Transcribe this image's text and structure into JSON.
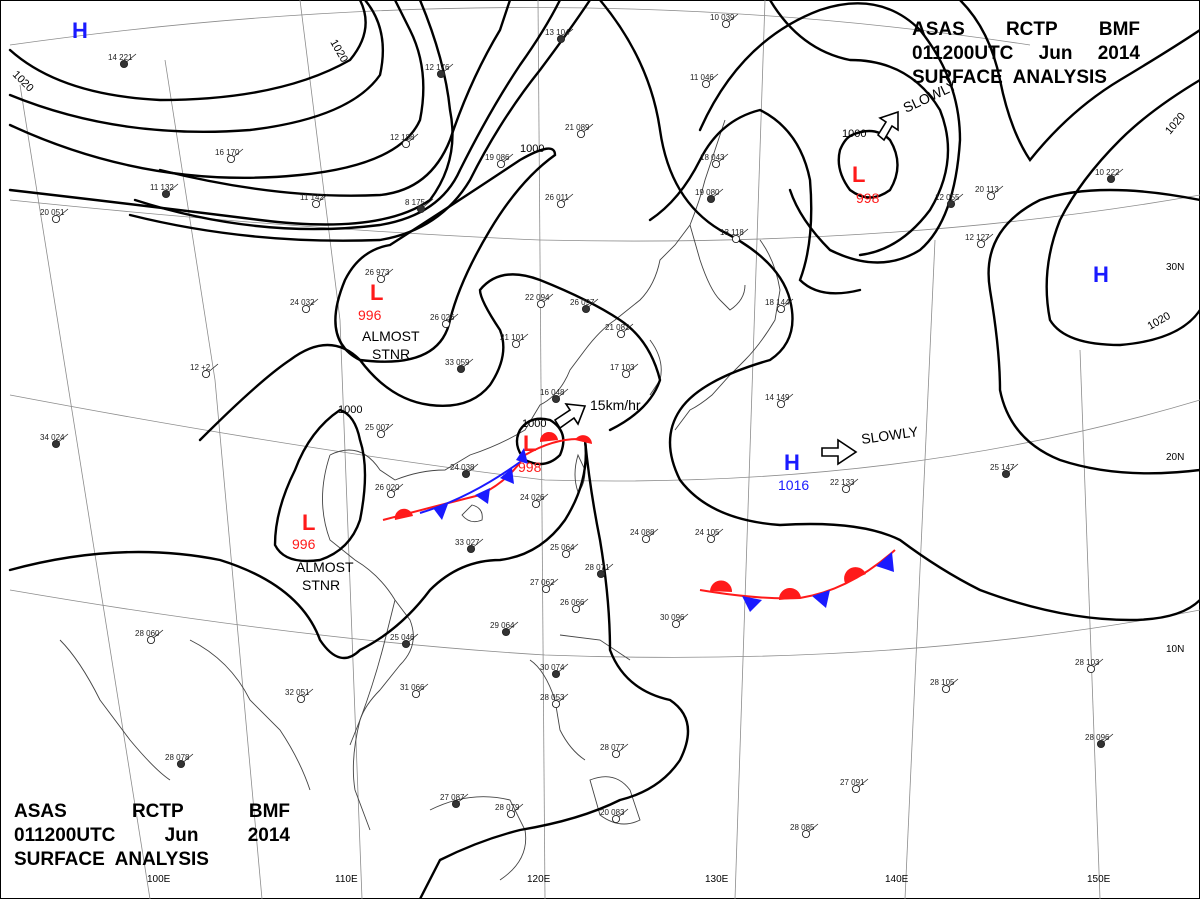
{
  "header": {
    "line1": [
      "ASAS",
      "RCTP",
      "BMF"
    ],
    "line2": [
      "011200UTC",
      "Jun",
      "2014"
    ],
    "line3": "SURFACE  ANALYSIS"
  },
  "colors": {
    "high": "#1a1aff",
    "low": "#ff1a1a",
    "isobar": "#000000",
    "grid": "#8c8c8c"
  },
  "longitude_labels": [
    "100E",
    "110E",
    "120E",
    "130E",
    "140E",
    "150E"
  ],
  "latitude_labels": [
    "30N",
    "20N",
    "10N"
  ],
  "isobar_labels": [
    "1020",
    "1020",
    "1000",
    "1000",
    "1000",
    "1000",
    "1020",
    "1020"
  ],
  "pressure_centers": [
    {
      "type": "H",
      "value": ""
    },
    {
      "type": "L",
      "value": "996"
    },
    {
      "type": "L",
      "value": "998"
    },
    {
      "type": "L",
      "value": "996"
    },
    {
      "type": "L",
      "value": "998"
    },
    {
      "type": "H",
      "value": "1016"
    },
    {
      "type": "H",
      "value": ""
    }
  ],
  "annotations": [
    "ALMOST\nSTNR",
    "ALMOST\nSTNR",
    "15km/hr",
    "SLOWLY",
    "SLOWLY"
  ],
  "stations": [
    "14 221",
    "16 170",
    "12 188",
    "12 176",
    "19 086",
    "21 089",
    "13 104",
    "10 039",
    "11 046",
    "11 132",
    "20 051",
    "11 142",
    "8 175",
    "26 011",
    "18 043",
    "19 080",
    "13 118",
    "26 973",
    "12 055",
    "12 127",
    "20 113",
    "10 222",
    "24 032",
    "22 094",
    "26 097",
    "21 082",
    "21 101",
    "33 059",
    "26 026",
    "17 103",
    "16 048",
    "18 144",
    "14 149",
    "25 147",
    "22 133",
    "12 +2",
    "34 024",
    "25 007",
    "26 020",
    "24 038",
    "24 026",
    "25 064",
    "33 027",
    "24 088",
    "24 105",
    "28 071",
    "27 062",
    "26 066",
    "29 064",
    "30 096",
    "28 060",
    "25 046",
    "31 066",
    "32 051",
    "30 074",
    "28 053",
    "28 077",
    "27 087",
    "28 079",
    "20 083",
    "28 078",
    "28 105",
    "28 103",
    "28 096",
    "27 091",
    "28 085"
  ]
}
